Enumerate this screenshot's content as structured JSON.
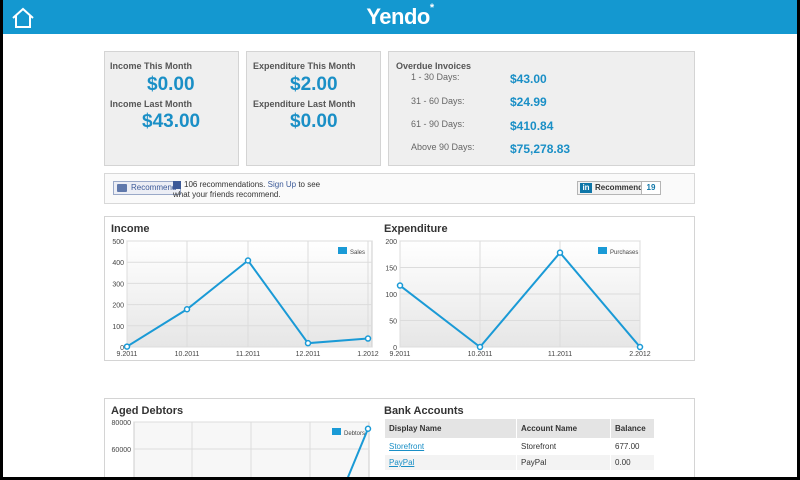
{
  "app": {
    "logo": "Yendo",
    "logo_mark": "*"
  },
  "summary": {
    "income_this_month_label": "Income This Month",
    "income_this_month": "$0.00",
    "income_last_month_label": "Income Last Month",
    "income_last_month": "$43.00",
    "expenditure_this_month_label": "Expenditure This Month",
    "expenditure_this_month": "$2.00",
    "expenditure_last_month_label": "Expenditure Last Month",
    "expenditure_last_month": "$0.00"
  },
  "overdue": {
    "title": "Overdue Invoices",
    "rows": [
      {
        "label": "1 - 30 Days:",
        "value": "$43.00"
      },
      {
        "label": "31 - 60 Days:",
        "value": "$24.99"
      },
      {
        "label": "61 - 90 Days:",
        "value": "$410.84"
      },
      {
        "label": "Above 90 Days:",
        "value": "$75,278.83"
      }
    ]
  },
  "social": {
    "fb_button": "Recommend",
    "fb_text_pre": "106 recommendations.",
    "fb_signup": "Sign Up",
    "fb_text_post": "to see what your friends recommend.",
    "li_button": "Recommend",
    "li_icon": "in",
    "li_count": "19"
  },
  "charts": {
    "income": {
      "title": "Income",
      "legend": "Sales",
      "y_ticks": [
        "0",
        "100",
        "200",
        "300",
        "400",
        "500"
      ],
      "x_ticks": [
        "9.2011",
        "10.2011",
        "11.2011",
        "12.2011",
        "1.2012"
      ]
    },
    "expenditure": {
      "title": "Expenditure",
      "legend": "Purchases",
      "y_ticks": [
        "0",
        "50",
        "100",
        "150",
        "200"
      ],
      "x_ticks": [
        "9.2011",
        "10.2011",
        "11.2011",
        "2.2012"
      ]
    },
    "aged_debtors": {
      "title": "Aged Debtors",
      "legend": "Debtors",
      "y_ticks": [
        "60000",
        "80000"
      ]
    }
  },
  "bank": {
    "title": "Bank Accounts",
    "headers": [
      "Display Name",
      "Account Name",
      "Balance"
    ],
    "rows": [
      {
        "display": "Storefront",
        "account": "Storefront",
        "balance": "677.00"
      },
      {
        "display": "PayPal",
        "account": "PayPal",
        "balance": "0.00"
      }
    ]
  },
  "chart_data": [
    {
      "type": "line",
      "title": "Income",
      "categories": [
        "9.2011",
        "10.2011",
        "11.2011",
        "12.2011",
        "1.2012"
      ],
      "series": [
        {
          "name": "Sales",
          "values": [
            2,
            178,
            408,
            18,
            40
          ]
        }
      ],
      "ylim": [
        0,
        500
      ],
      "grid": true,
      "legend": "top-right",
      "color": "#1a9ad6"
    },
    {
      "type": "line",
      "title": "Expenditure",
      "categories": [
        "9.2011",
        "10.2011",
        "11.2011",
        "2.2012"
      ],
      "series": [
        {
          "name": "Purchases",
          "values": [
            116,
            0,
            178,
            0
          ]
        }
      ],
      "ylim": [
        0,
        200
      ],
      "grid": true,
      "legend": "top-right",
      "color": "#1a9ad6"
    },
    {
      "type": "line",
      "title": "Aged Debtors",
      "series": [
        {
          "name": "Debtors",
          "values": [
            75000
          ]
        }
      ],
      "ylim": [
        40000,
        80000
      ],
      "grid": true,
      "legend": "top-right",
      "color": "#1a9ad6"
    }
  ]
}
